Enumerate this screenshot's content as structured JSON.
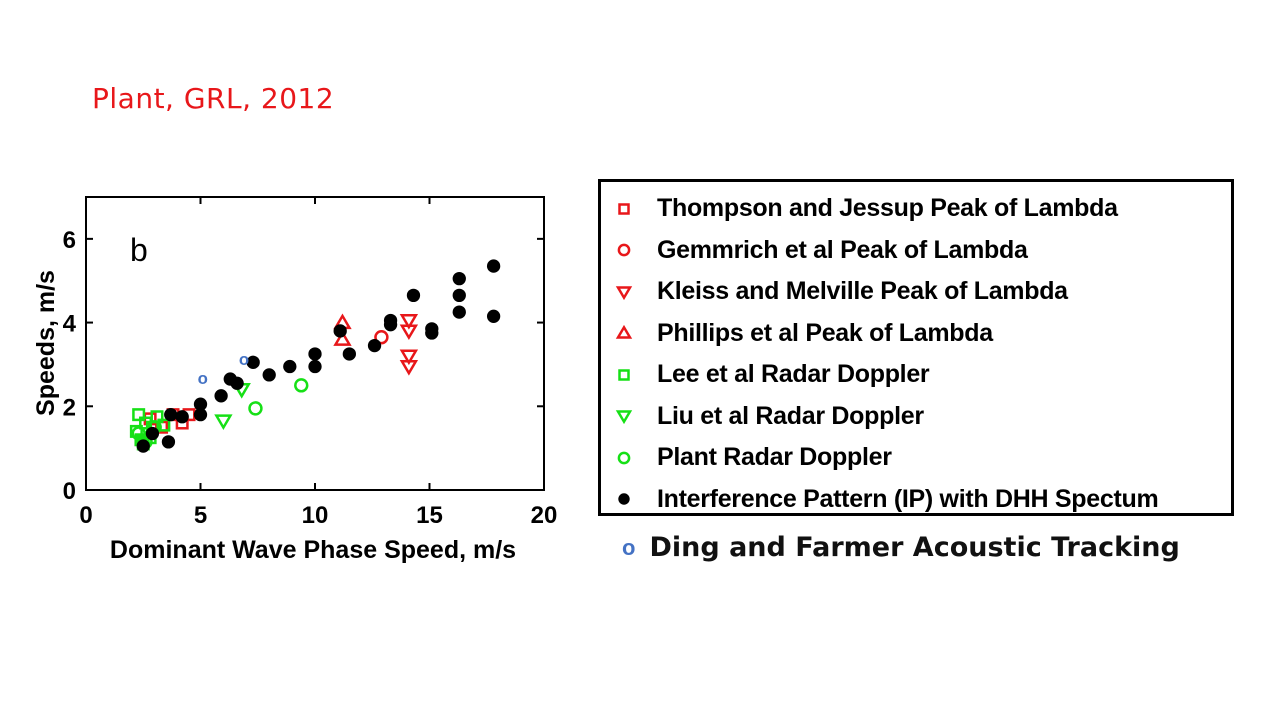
{
  "citation": "Plant, GRL, 2012",
  "colors": {
    "red": "#e8171a",
    "green": "#16e016",
    "black": "#000000",
    "blue": "#4472c4"
  },
  "chart_data": {
    "type": "scatter",
    "panel_label": "b",
    "xlabel": "Dominant Wave Phase Speed, m/s",
    "ylabel": "Speeds, m/s",
    "xlim": [
      0,
      20
    ],
    "ylim": [
      0,
      7
    ],
    "x_ticks": [
      0,
      5,
      10,
      15,
      20
    ],
    "y_ticks": [
      0,
      2,
      4,
      6
    ],
    "grid": false,
    "legend_position": "right, outside plot",
    "series": [
      {
        "name": "Thompson and Jessup Peak of Lambda",
        "marker": "square-open",
        "color": "#e8171a",
        "points": [
          [
            2.8,
            1.7
          ],
          [
            3.3,
            1.5
          ],
          [
            3.8,
            1.8
          ],
          [
            4.2,
            1.6
          ],
          [
            4.5,
            1.8
          ]
        ]
      },
      {
        "name": "Gemmrich et al Peak of Lambda",
        "marker": "circle-open",
        "color": "#e8171a",
        "points": [
          [
            12.9,
            3.65
          ]
        ]
      },
      {
        "name": "Kleiss and Melville Peak of Lambda",
        "marker": "triangle-down-open",
        "color": "#e8171a",
        "points": [
          [
            14.1,
            4.05
          ],
          [
            14.1,
            3.8
          ],
          [
            14.1,
            3.2
          ],
          [
            14.1,
            2.95
          ]
        ]
      },
      {
        "name": "Phillips et al Peak of Lambda",
        "marker": "triangle-up-open",
        "color": "#e8171a",
        "points": [
          [
            11.2,
            4.0
          ],
          [
            11.2,
            3.6
          ]
        ]
      },
      {
        "name": "Lee et al Radar Doppler",
        "marker": "square-open",
        "color": "#16e016",
        "points": [
          [
            2.3,
            1.8
          ],
          [
            2.2,
            1.4
          ],
          [
            2.4,
            1.2
          ],
          [
            2.6,
            1.6
          ],
          [
            2.9,
            1.5
          ],
          [
            3.1,
            1.75
          ],
          [
            3.4,
            1.55
          ],
          [
            2.5,
            1.1
          ],
          [
            2.8,
            1.25
          ]
        ]
      },
      {
        "name": "Liu et al Radar Doppler",
        "marker": "triangle-down-open",
        "color": "#16e016",
        "points": [
          [
            6.0,
            1.65
          ],
          [
            6.8,
            2.4
          ]
        ]
      },
      {
        "name": "Plant Radar Doppler",
        "marker": "circle-open",
        "color": "#16e016",
        "points": [
          [
            2.3,
            1.35
          ],
          [
            2.6,
            1.15
          ],
          [
            3.0,
            1.5
          ],
          [
            7.4,
            1.95
          ],
          [
            9.4,
            2.5
          ]
        ]
      },
      {
        "name": "Interference Pattern (IP) with DHH Spectum",
        "marker": "circle-filled",
        "color": "#000000",
        "points": [
          [
            2.5,
            1.05
          ],
          [
            2.9,
            1.35
          ],
          [
            3.6,
            1.15
          ],
          [
            3.7,
            1.8
          ],
          [
            4.2,
            1.75
          ],
          [
            5.0,
            1.8
          ],
          [
            5.0,
            2.05
          ],
          [
            5.9,
            2.25
          ],
          [
            6.3,
            2.65
          ],
          [
            6.6,
            2.55
          ],
          [
            7.3,
            3.05
          ],
          [
            8.0,
            2.75
          ],
          [
            8.9,
            2.95
          ],
          [
            10.0,
            2.95
          ],
          [
            10.0,
            3.25
          ],
          [
            11.1,
            3.8
          ],
          [
            11.5,
            3.25
          ],
          [
            12.6,
            3.45
          ],
          [
            13.3,
            3.95
          ],
          [
            13.3,
            4.05
          ],
          [
            14.3,
            4.65
          ],
          [
            15.1,
            3.75
          ],
          [
            15.1,
            3.85
          ],
          [
            16.3,
            5.05
          ],
          [
            16.3,
            4.65
          ],
          [
            16.3,
            4.25
          ],
          [
            17.8,
            5.35
          ],
          [
            17.8,
            4.15
          ]
        ]
      },
      {
        "name": "Ding and Farmer Acoustic Tracking",
        "marker": "letter-o",
        "color": "#4472c4",
        "points": [
          [
            5.1,
            2.65
          ],
          [
            6.9,
            3.1
          ]
        ]
      }
    ]
  },
  "legend": {
    "items": [
      {
        "label": "Thompson and Jessup Peak of Lambda",
        "marker": "square-open",
        "color": "#e8171a"
      },
      {
        "label": "Gemmrich et al Peak of Lambda",
        "marker": "circle-open",
        "color": "#e8171a"
      },
      {
        "label": "Kleiss and Melville Peak of Lambda",
        "marker": "triangle-down-open",
        "color": "#e8171a"
      },
      {
        "label": "Phillips et al Peak of Lambda",
        "marker": "triangle-up-open",
        "color": "#e8171a"
      },
      {
        "label": "Lee et al Radar Doppler",
        "marker": "square-open",
        "color": "#16e016"
      },
      {
        "label": "Liu et al Radar Doppler",
        "marker": "triangle-down-open",
        "color": "#16e016"
      },
      {
        "label": "Plant Radar Doppler",
        "marker": "circle-open",
        "color": "#16e016"
      },
      {
        "label": "Interference Pattern (IP) with DHH Spectum",
        "marker": "circle-filled",
        "color": "#000000"
      }
    ],
    "extra": {
      "marker_text": "o",
      "label": "Ding and Farmer Acoustic Tracking",
      "color": "#4472c4"
    }
  }
}
